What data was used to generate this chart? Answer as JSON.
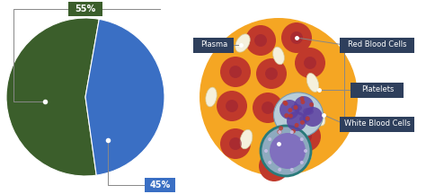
{
  "pie_colors": [
    "#3b5e2b",
    "#3a6fc4"
  ],
  "pie_labels": [
    "55%",
    "45%"
  ],
  "label_box_color_55": "#3b5e2b",
  "label_box_color_45": "#3a6fc4",
  "label_text_color": "#ffffff",
  "bg_color": "#ffffff",
  "annotation_box_color": "#2e3f5c",
  "annotation_text_color": "#ffffff",
  "blood_bg_color": "#f5a623",
  "rbc_color": "#c0392b",
  "rbc_center_color": "#9b2335",
  "platelet_color": "#f5f0dc",
  "platelet_edge": "#d4c99a",
  "wbc_body_color": "#b8cdd8",
  "wbc_nucleus_color": "#5b3fa0",
  "wbc_granule_color": "#c0392b",
  "lymph_outer_color": "#8eaabf",
  "lymph_border_color": "#2a7a7a",
  "lymph_nucleus_color": "#8070be",
  "lymph_dot_color": "#c8c0e8",
  "connector_color": "#888888",
  "plasma_text": "Plasma",
  "rbc_text": "Red Blood Cells",
  "platelets_text": "Platelets",
  "wbc_text": "White Blood Cells"
}
